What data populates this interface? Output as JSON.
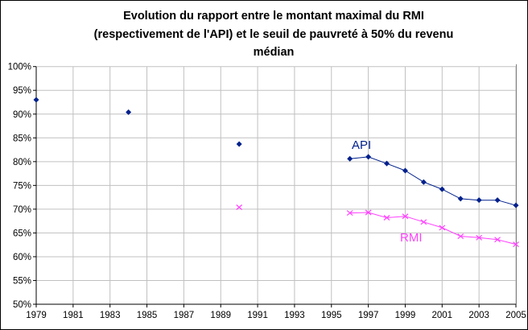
{
  "chart_data": {
    "type": "line",
    "title_lines": [
      "Evolution du rapport entre le montant maximal du RMI",
      "(respectivement de l'API) et le seuil de pauvreté à 50% du revenu",
      "médian"
    ],
    "xlabel": "",
    "ylabel": "",
    "xlim": [
      1979,
      2005
    ],
    "ylim": [
      50,
      100
    ],
    "x_ticks": [
      "1979",
      "1981",
      "1983",
      "1985",
      "1987",
      "1989",
      "1991",
      "1993",
      "1995",
      "1997",
      "1999",
      "2001",
      "2003",
      "2005"
    ],
    "y_ticks": [
      "50%",
      "55%",
      "60%",
      "65%",
      "70%",
      "75%",
      "80%",
      "85%",
      "90%",
      "95%",
      "100%"
    ],
    "grid": true,
    "series": [
      {
        "name": "API",
        "color": "#00208C",
        "marker": "diamond",
        "points": [
          [
            1979,
            93.0
          ],
          [
            1984,
            90.4
          ],
          [
            1990,
            83.7
          ],
          [
            1996,
            80.6
          ],
          [
            1997,
            81.0
          ],
          [
            1998,
            79.6
          ],
          [
            1999,
            78.1
          ],
          [
            2000,
            75.7
          ],
          [
            2001,
            74.2
          ],
          [
            2002,
            72.2
          ],
          [
            2003,
            71.9
          ],
          [
            2004,
            71.9
          ],
          [
            2005,
            70.8
          ]
        ],
        "line_from": 1996
      },
      {
        "name": "RMI",
        "color": "#FF40FF",
        "marker": "x",
        "points": [
          [
            1990,
            70.4
          ],
          [
            1996,
            69.2
          ],
          [
            1997,
            69.3
          ],
          [
            1998,
            68.2
          ],
          [
            1999,
            68.5
          ],
          [
            2000,
            67.3
          ],
          [
            2001,
            66.1
          ],
          [
            2002,
            64.3
          ],
          [
            2003,
            64.0
          ],
          [
            2004,
            63.6
          ],
          [
            2005,
            62.6
          ]
        ],
        "line_from": 1996
      }
    ]
  }
}
